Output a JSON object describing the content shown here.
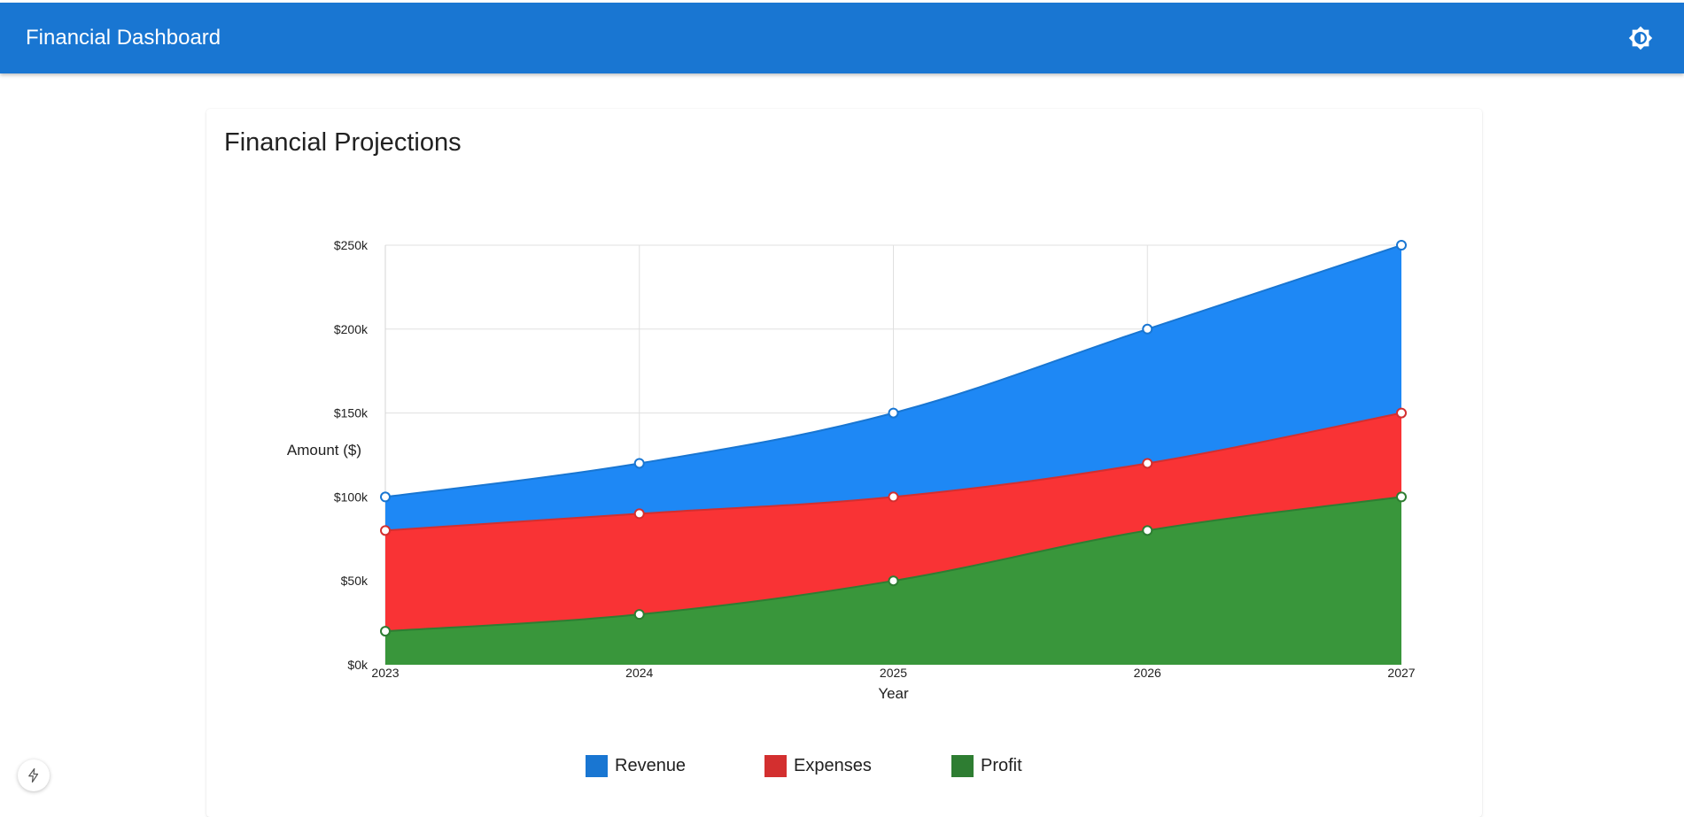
{
  "app_bar": {
    "title": "Financial Dashboard",
    "theme_icon": "brightness-icon"
  },
  "card": {
    "title": "Financial Projections"
  },
  "colors": {
    "app_bar": "#1976d2",
    "revenue": "#1e88f5",
    "expenses": "#f93335",
    "profit": "#39963b",
    "revenue_legend": "#1976d2",
    "expenses_legend": "#d32f2f",
    "profit_legend": "#2e7d32"
  },
  "chart_data": {
    "type": "area",
    "x": [
      "2023",
      "2024",
      "2025",
      "2026",
      "2027"
    ],
    "series": [
      {
        "name": "Revenue",
        "values": [
          100000,
          120000,
          150000,
          200000,
          250000
        ]
      },
      {
        "name": "Expenses",
        "values": [
          80000,
          90000,
          100000,
          120000,
          150000
        ]
      },
      {
        "name": "Profit",
        "values": [
          20000,
          30000,
          50000,
          80000,
          100000
        ]
      }
    ],
    "xlabel": "Year",
    "ylabel": "Amount ($)",
    "ylim": [
      0,
      250000
    ],
    "yticks": [
      "$0k",
      "$50k",
      "$100k",
      "$150k",
      "$200k",
      "$250k"
    ],
    "grid": true,
    "legend": "bottom"
  },
  "fab": {
    "icon": "bolt-icon"
  }
}
